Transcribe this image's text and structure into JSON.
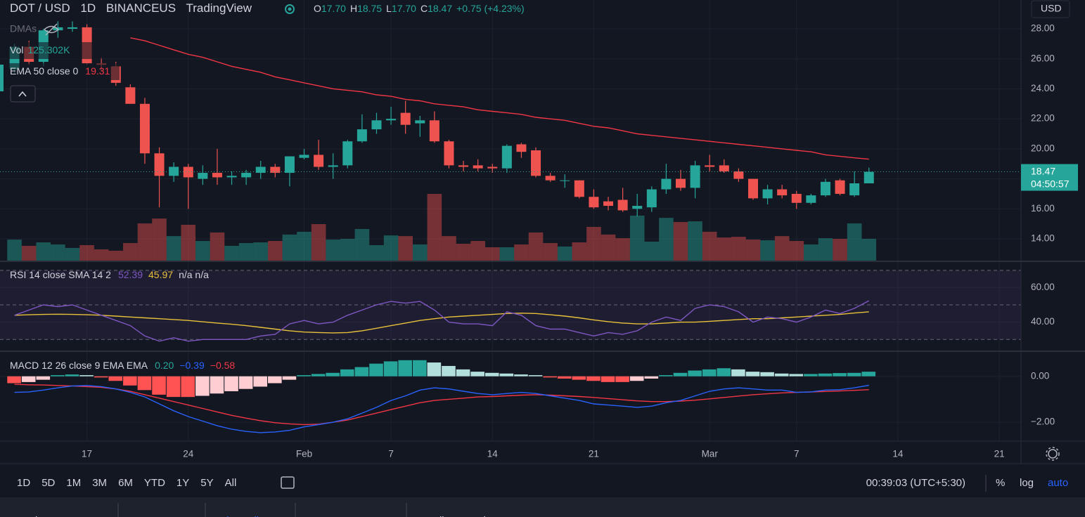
{
  "header": {
    "symbol": "DOT / USD",
    "interval": "1D",
    "exchange": "BINANCEUS",
    "source": "TradingView",
    "ohlc": [
      {
        "key": "O",
        "value": "17.70"
      },
      {
        "key": "H",
        "value": "18.75"
      },
      {
        "key": "L",
        "value": "17.70"
      },
      {
        "key": "C",
        "value": "18.47"
      }
    ],
    "change": "+0.75 (+4.23%)",
    "currency": "USD",
    "dmas": "DMAs",
    "vol_name": "Vol",
    "ema_name": "EMA 50 close 0",
    "countdown": "04:50:57",
    "rsi_name": "RSI 14 close SMA 14 2",
    "rsi_na": "n/a n/a",
    "macd_name": "MACD 12 26 close 9 EMA EMA",
    "macd_values": [
      "0.20",
      "−0.39",
      "−0.58"
    ]
  },
  "chart_data": [
    {
      "type": "candlestick",
      "xlim": [
        -1,
        69.5
      ],
      "xticks": [
        {
          "value": 5,
          "label": "17"
        },
        {
          "value": 12,
          "label": "24"
        },
        {
          "value": 20,
          "label": "Feb"
        },
        {
          "value": 26,
          "label": "7"
        },
        {
          "value": 33,
          "label": "14"
        },
        {
          "value": 40,
          "label": "21"
        },
        {
          "value": 48,
          "label": "Mar"
        },
        {
          "value": 54,
          "label": "7"
        },
        {
          "value": 61,
          "label": "14"
        },
        {
          "value": 68,
          "label": "21"
        }
      ],
      "ylim": [
        12.55,
        29.92
      ],
      "yticks": [
        {
          "value": 14,
          "label": "14.00"
        },
        {
          "value": 16,
          "label": "16.00"
        },
        {
          "value": 18,
          "label": "18.00"
        },
        {
          "value": 20,
          "label": "20.00"
        },
        {
          "value": 22,
          "label": "22.00"
        },
        {
          "value": 24,
          "label": "24.00"
        },
        {
          "value": 26,
          "label": "26.00"
        },
        {
          "value": 28,
          "label": "28.00"
        }
      ],
      "up_color": "#26a69a",
      "down_color": "#ef5350",
      "ema_color": "#f23645",
      "open": [
        25.3,
        26.8,
        25.8,
        27.9,
        28.0,
        28.1,
        25.7,
        25.5,
        24.1,
        23.0,
        19.7,
        18.2,
        18.8,
        18.0,
        18.4,
        18.1,
        18.1,
        18.4,
        18.8,
        18.4,
        19.4,
        19.6,
        18.8,
        18.9,
        20.5,
        21.3,
        21.9,
        22.4,
        21.7,
        21.9,
        20.5,
        18.9,
        18.9,
        18.8,
        18.7,
        20.3,
        19.9,
        18.2,
        17.9,
        17.9,
        16.8,
        16.5,
        16.6,
        16.0,
        16.1,
        17.3,
        18.0,
        17.4,
        18.9,
        18.9,
        18.5,
        18.0,
        16.7,
        17.3,
        17.0,
        16.4,
        16.9,
        17.9,
        16.9,
        17.7
      ],
      "high": [
        27.0,
        27.2,
        28.0,
        28.5,
        28.5,
        28.3,
        26.1,
        25.8,
        24.3,
        23.4,
        20.1,
        19.1,
        19.0,
        18.9,
        20.0,
        18.5,
        18.6,
        19.2,
        19.0,
        19.5,
        20.0,
        20.6,
        19.7,
        20.6,
        22.3,
        22.4,
        22.8,
        23.2,
        22.2,
        22.5,
        20.6,
        19.2,
        19.3,
        19.0,
        20.3,
        20.4,
        20.1,
        18.4,
        18.3,
        17.9,
        17.3,
        16.8,
        17.4,
        17.0,
        17.5,
        19.0,
        18.6,
        19.2,
        19.6,
        19.3,
        18.7,
        18.0,
        17.6,
        17.6,
        17.2,
        17.0,
        18.0,
        18.0,
        18.5,
        18.75
      ],
      "low": [
        25.0,
        25.6,
        25.5,
        27.4,
        27.8,
        25.6,
        25.2,
        24.2,
        23.0,
        19.0,
        16.1,
        17.8,
        16.0,
        17.6,
        17.6,
        17.6,
        17.6,
        18.0,
        18.1,
        17.5,
        19.3,
        18.6,
        18.0,
        18.7,
        20.4,
        21.0,
        21.6,
        21.0,
        20.8,
        20.4,
        18.7,
        18.5,
        18.5,
        18.4,
        18.4,
        19.4,
        18.1,
        17.8,
        17.4,
        16.7,
        16.0,
        15.9,
        15.8,
        15.5,
        15.8,
        17.0,
        17.2,
        16.7,
        18.5,
        18.4,
        17.8,
        16.6,
        16.3,
        16.7,
        16.0,
        16.3,
        16.8,
        16.9,
        16.8,
        17.7
      ],
      "close": [
        26.8,
        25.8,
        27.9,
        28.1,
        28.1,
        25.7,
        25.6,
        24.4,
        23.0,
        19.7,
        18.2,
        18.8,
        18.1,
        18.4,
        18.1,
        18.2,
        18.4,
        18.8,
        18.4,
        19.5,
        19.6,
        18.8,
        18.9,
        20.5,
        21.3,
        21.9,
        22.0,
        21.6,
        21.9,
        20.5,
        18.9,
        18.8,
        18.7,
        18.7,
        20.2,
        19.8,
        18.2,
        17.9,
        17.9,
        16.8,
        16.1,
        16.2,
        15.9,
        16.2,
        17.3,
        18.0,
        17.4,
        18.9,
        18.8,
        18.5,
        18.0,
        16.7,
        17.3,
        16.9,
        16.4,
        16.9,
        17.8,
        17.0,
        17.7,
        18.47
      ],
      "volume": [
        121,
        85,
        105,
        93,
        73,
        89,
        65,
        57,
        101,
        214,
        242,
        141,
        206,
        113,
        162,
        85,
        101,
        105,
        113,
        150,
        166,
        210,
        121,
        125,
        182,
        89,
        145,
        141,
        93,
        384,
        141,
        97,
        113,
        77,
        77,
        93,
        162,
        101,
        81,
        105,
        194,
        150,
        129,
        259,
        109,
        246,
        222,
        226,
        166,
        133,
        137,
        121,
        117,
        141,
        113,
        93,
        129,
        125,
        214,
        125.302
      ],
      "volume_label": "125.302K",
      "ema": [
        null,
        null,
        null,
        null,
        null,
        null,
        null,
        null,
        27.4,
        27.2,
        26.9,
        26.6,
        26.3,
        26.1,
        25.8,
        25.5,
        25.3,
        25.1,
        24.8,
        24.6,
        24.4,
        24.2,
        24.0,
        23.9,
        23.8,
        23.6,
        23.5,
        23.3,
        23.2,
        23.0,
        22.9,
        22.8,
        22.6,
        22.5,
        22.4,
        22.3,
        22.1,
        22.0,
        21.9,
        21.7,
        21.5,
        21.4,
        21.2,
        21.0,
        20.9,
        20.8,
        20.7,
        20.6,
        20.5,
        20.4,
        20.3,
        20.2,
        20.1,
        20.0,
        19.9,
        19.8,
        19.6,
        19.5,
        19.4,
        19.31
      ]
    },
    {
      "type": "rsi",
      "ylim": [
        23.6,
        74.8
      ],
      "yticks": [
        {
          "value": 40,
          "label": "40.00"
        },
        {
          "value": 60,
          "label": "60.00"
        }
      ],
      "bands": [
        30,
        50,
        70
      ],
      "rsi_color": "#7e57c2",
      "sma_color": "#e8c13a",
      "rsi": [
        44,
        47,
        50,
        49,
        50,
        47,
        44,
        41,
        38,
        32,
        29,
        31,
        29,
        30,
        30,
        30,
        30,
        32,
        33,
        39,
        41,
        39,
        40,
        44,
        47,
        50,
        52,
        51,
        52,
        47,
        40,
        39,
        39,
        38,
        46,
        44,
        38,
        36,
        36,
        34,
        32,
        34,
        33,
        35,
        40,
        43,
        41,
        48,
        50,
        49,
        46,
        40,
        43,
        42,
        40,
        43,
        47,
        45,
        48,
        52.39
      ],
      "sma": [
        44,
        44.3,
        44.5,
        44.6,
        44.5,
        44.3,
        44,
        43.5,
        43,
        42.5,
        42,
        41.5,
        41,
        40.2,
        39.5,
        38.8,
        38,
        37,
        36,
        35,
        34.3,
        34,
        33.8,
        34,
        35,
        36.5,
        38,
        39.5,
        41,
        42,
        43,
        43.5,
        44,
        44.5,
        45,
        45.2,
        45,
        44.3,
        43.5,
        42.5,
        41.3,
        40.3,
        39.5,
        39,
        39,
        39.5,
        40,
        40,
        40.5,
        41,
        41.5,
        42,
        42,
        42.5,
        43,
        43.5,
        44,
        44.5,
        45.3,
        45.97
      ]
    },
    {
      "type": "macd",
      "ylim": [
        -2.79,
        1.06
      ],
      "yticks": [
        {
          "value": 0,
          "label": "0.00"
        },
        {
          "value": -2,
          "label": "−2.00"
        }
      ],
      "macd_color": "#2962ff",
      "signal_color": "#f23645",
      "hist_colors": [
        "#26a69a",
        "#b2dfdb",
        "#ff5252",
        "#ffcdd2"
      ],
      "hist": [
        -0.3,
        -0.25,
        -0.15,
        0.05,
        0.08,
        0.05,
        -0.05,
        -0.2,
        -0.4,
        -0.6,
        -0.8,
        -0.9,
        -0.9,
        -0.85,
        -0.75,
        -0.65,
        -0.55,
        -0.45,
        -0.3,
        -0.15,
        0.05,
        0.1,
        0.15,
        0.3,
        0.4,
        0.55,
        0.65,
        0.7,
        0.7,
        0.6,
        0.45,
        0.3,
        0.2,
        0.15,
        0.12,
        0.08,
        0.05,
        -0.05,
        -0.1,
        -0.15,
        -0.2,
        -0.25,
        -0.25,
        -0.2,
        -0.1,
        0.05,
        0.15,
        0.25,
        0.3,
        0.35,
        0.3,
        0.2,
        0.18,
        0.12,
        0.1,
        0.1,
        0.12,
        0.14,
        0.15,
        0.2
      ],
      "macd": [
        -0.7,
        -0.68,
        -0.6,
        -0.5,
        -0.42,
        -0.4,
        -0.45,
        -0.55,
        -0.7,
        -0.9,
        -1.2,
        -1.5,
        -1.75,
        -1.95,
        -2.15,
        -2.3,
        -2.4,
        -2.45,
        -2.42,
        -2.35,
        -2.2,
        -2.1,
        -2.0,
        -1.85,
        -1.6,
        -1.35,
        -1.05,
        -0.85,
        -0.6,
        -0.5,
        -0.55,
        -0.65,
        -0.75,
        -0.8,
        -0.75,
        -0.7,
        -0.75,
        -0.85,
        -0.95,
        -1.05,
        -1.2,
        -1.25,
        -1.3,
        -1.35,
        -1.3,
        -1.15,
        -1.05,
        -0.85,
        -0.65,
        -0.55,
        -0.5,
        -0.55,
        -0.6,
        -0.6,
        -0.7,
        -0.68,
        -0.6,
        -0.58,
        -0.5,
        -0.39
      ],
      "signal": [
        -0.35,
        -0.37,
        -0.38,
        -0.4,
        -0.42,
        -0.45,
        -0.48,
        -0.55,
        -0.65,
        -0.8,
        -0.95,
        -1.1,
        -1.25,
        -1.4,
        -1.55,
        -1.7,
        -1.82,
        -1.93,
        -2.02,
        -2.07,
        -2.1,
        -2.08,
        -2.0,
        -1.9,
        -1.75,
        -1.6,
        -1.45,
        -1.3,
        -1.15,
        -1.05,
        -1.0,
        -0.95,
        -0.9,
        -0.88,
        -0.85,
        -0.82,
        -0.8,
        -0.82,
        -0.85,
        -0.88,
        -0.92,
        -0.97,
        -1.02,
        -1.07,
        -1.1,
        -1.1,
        -1.08,
        -1.04,
        -0.98,
        -0.92,
        -0.86,
        -0.8,
        -0.76,
        -0.72,
        -0.7,
        -0.68,
        -0.66,
        -0.64,
        -0.61,
        -0.58
      ]
    }
  ],
  "toolbar": {
    "ranges": [
      "1D",
      "5D",
      "1M",
      "3M",
      "6M",
      "YTD",
      "1Y",
      "5Y",
      "All"
    ],
    "clock": "00:39:03 (UTC+5:30)",
    "options": [
      "%",
      "log",
      "auto"
    ]
  },
  "tabs": [
    "Stock Screener",
    "Text Notes",
    "Pine Editor",
    "Strategy Tester",
    "Trading Panel"
  ]
}
